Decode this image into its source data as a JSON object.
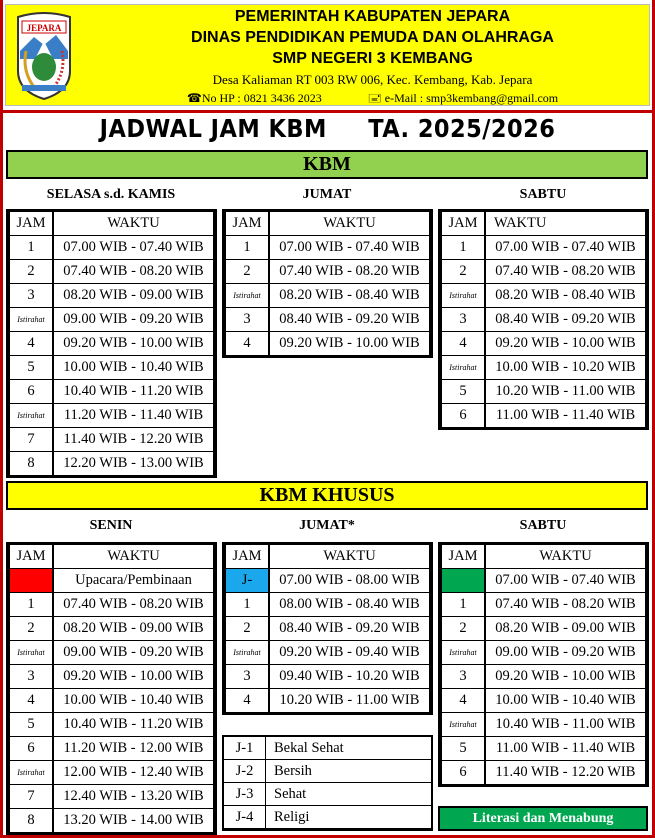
{
  "header": {
    "logo_text": "JEPARA",
    "line1": "PEMERINTAH KABUPATEN JEPARA",
    "line2": "DINAS PENDIDIKAN PEMUDA DAN OLAHRAGA",
    "line3": "SMP NEGERI 3 KEMBANG",
    "address": "Desa Kaliaman RT 003 RW 006, Kec. Kembang, Kab. Jepara",
    "phone": "☎No HP : 0821 3436 2023",
    "email": "🖃 e-Mail : smp3kembang@gmail.com"
  },
  "title": "JADWAL JAM KBM     TA. 2025/2026",
  "colors": {
    "yellow": "#ffff00",
    "green_bar": "#92d050",
    "red": "#ff0000",
    "blue": "#1aa7ec",
    "green": "#00a650",
    "border": "#c00000"
  },
  "kbm": {
    "label": "KBM",
    "tables": [
      {
        "day": "SELASA s.d. KAMIS",
        "head": [
          "JAM",
          "WAKTU"
        ],
        "rows": [
          [
            "1",
            "07.00 WIB - 07.40 WIB"
          ],
          [
            "2",
            "07.40 WIB - 08.20 WIB"
          ],
          [
            "3",
            "08.20 WIB - 09.00 WIB"
          ],
          [
            "Istirahat",
            "09.00 WIB - 09.20 WIB"
          ],
          [
            "4",
            "09.20 WIB - 10.00 WIB"
          ],
          [
            "5",
            "10.00 WIB - 10.40 WIB"
          ],
          [
            "6",
            "10.40 WIB - 11.20 WIB"
          ],
          [
            "Istirahat",
            "11.20 WIB - 11.40 WIB"
          ],
          [
            "7",
            "11.40 WIB - 12.20 WIB"
          ],
          [
            "8",
            "12.20 WIB - 13.00 WIB"
          ]
        ]
      },
      {
        "day": "JUMAT",
        "head": [
          "JAM",
          "WAKTU"
        ],
        "rows": [
          [
            "1",
            "07.00 WIB - 07.40 WIB"
          ],
          [
            "2",
            "07.40 WIB - 08.20 WIB"
          ],
          [
            "Istirahat",
            "08.20 WIB - 08.40 WIB"
          ],
          [
            "3",
            "08.40 WIB - 09.20 WIB"
          ],
          [
            "4",
            "09.20 WIB - 10.00 WIB"
          ]
        ]
      },
      {
        "day": "SABTU",
        "head": [
          "JAM",
          "WAKTU"
        ],
        "rows": [
          [
            "1",
            "07.00 WIB - 07.40 WIB"
          ],
          [
            "2",
            "07.40 WIB - 08.20 WIB"
          ],
          [
            "Istirahat",
            "08.20 WIB - 08.40 WIB"
          ],
          [
            "3",
            "08.40 WIB - 09.20 WIB"
          ],
          [
            "4",
            "09.20 WIB - 10.00 WIB"
          ],
          [
            "Istirahat",
            "10.00 WIB - 10.20 WIB"
          ],
          [
            "5",
            "10.20 WIB - 11.00 WIB"
          ],
          [
            "6",
            "11.00 WIB - 11.40 WIB"
          ]
        ]
      }
    ]
  },
  "kbm_khusus": {
    "label": "KBM KHUSUS",
    "tables": [
      {
        "day": "SENIN",
        "head": [
          "JAM",
          "WAKTU"
        ],
        "rows": [
          [
            "",
            "Upacara/Pembinaan",
            "red"
          ],
          [
            "1",
            "07.40 WIB - 08.20 WIB"
          ],
          [
            "2",
            "08.20 WIB - 09.00 WIB"
          ],
          [
            "Istirahat",
            "09.00 WIB - 09.20 WIB"
          ],
          [
            "3",
            "09.20 WIB - 10.00 WIB"
          ],
          [
            "4",
            "10.00 WIB - 10.40 WIB"
          ],
          [
            "5",
            "10.40 WIB - 11.20 WIB"
          ],
          [
            "6",
            "11.20 WIB - 12.00 WIB"
          ],
          [
            "Istirahat",
            "12.00 WIB - 12.40 WIB"
          ],
          [
            "7",
            "12.40 WIB - 13.20 WIB"
          ],
          [
            "8",
            "13.20 WIB - 14.00 WIB"
          ]
        ]
      },
      {
        "day": "JUMAT*",
        "head": [
          "JAM",
          "WAKTU"
        ],
        "rows": [
          [
            "J-",
            "07.00 WIB - 08.00 WIB",
            "blue"
          ],
          [
            "1",
            "08.00 WIB - 08.40 WIB"
          ],
          [
            "2",
            "08.40 WIB - 09.20 WIB"
          ],
          [
            "Istirahat",
            "09.20 WIB - 09.40 WIB"
          ],
          [
            "3",
            "09.40 WIB - 10.20 WIB"
          ],
          [
            "4",
            "10.20 WIB - 11.00 WIB"
          ]
        ]
      },
      {
        "day": "SABTU",
        "head": [
          "JAM",
          "WAKTU"
        ],
        "rows": [
          [
            "",
            "07.00 WIB - 07.40 WIB",
            "green"
          ],
          [
            "1",
            "07.40 WIB - 08.20 WIB"
          ],
          [
            "2",
            "08.20 WIB - 09.00 WIB"
          ],
          [
            "Istirahat",
            "09.00 WIB - 09.20 WIB"
          ],
          [
            "3",
            "09.20 WIB - 10.00 WIB"
          ],
          [
            "4",
            "10.00 WIB - 10.40 WIB"
          ],
          [
            "Istirahat",
            "10.40 WIB - 11.00 WIB"
          ],
          [
            "5",
            "11.00 WIB - 11.40 WIB"
          ],
          [
            "6",
            "11.40 WIB - 12.20 WIB"
          ]
        ]
      }
    ],
    "jumat_legend": [
      [
        "J-1",
        "Bekal Sehat"
      ],
      [
        "J-2",
        "Bersih"
      ],
      [
        "J-3",
        "Sehat"
      ],
      [
        "J-4",
        "Religi"
      ]
    ],
    "literasi_label": "Literasi dan Menabung"
  }
}
